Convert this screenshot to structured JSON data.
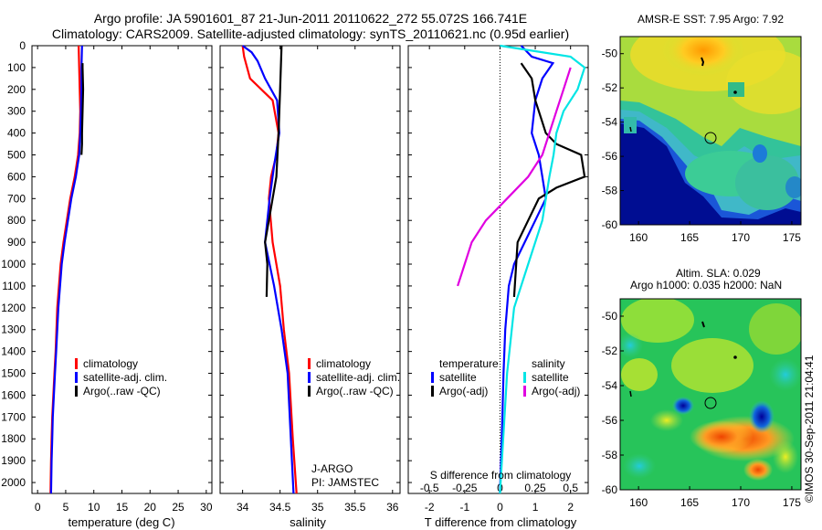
{
  "header": {
    "line1": "Argo profile: JA 5901601_87 21-Jun-2011 20110622_272 55.072S 166.741E",
    "line2": "Climatology: CARS2009. Satellite-adjusted climatology: synTS_20110621.nc (0.95d earlier)"
  },
  "colors": {
    "climatology": "#ff0000",
    "satellite": "#0000ff",
    "argo": "#000000",
    "s_satellite": "#00e5e5",
    "s_argo": "#e000e0"
  },
  "footer": {
    "pi_line1": "J-ARGO",
    "pi_line2": "PI: JAMSTEC",
    "credit": "©IMOS 30-Sep-2011 21:04:41"
  },
  "chart_data": [
    {
      "type": "line",
      "xlabel": "temperature (deg C)",
      "ylabel": "",
      "xlim": [
        -1,
        31
      ],
      "ylim": [
        2050,
        0
      ],
      "xticks": [
        0,
        5,
        10,
        15,
        20,
        25,
        30
      ],
      "yticks": [
        0,
        100,
        200,
        300,
        400,
        500,
        600,
        700,
        800,
        900,
        1000,
        1100,
        1200,
        1300,
        1400,
        1500,
        1600,
        1700,
        1800,
        1900,
        2000
      ],
      "legend": [
        "climatology",
        "satellite-adj. clim.",
        "Argo(..raw -QC)"
      ],
      "series": [
        {
          "name": "climatology",
          "x": [
            7.3,
            7.4,
            7.5,
            7.6,
            7.5,
            7.2,
            6.6,
            5.8,
            5.2,
            4.6,
            4.1,
            3.5,
            3.2,
            3.0,
            2.8,
            2.6,
            2.5,
            2.4,
            2.3
          ],
          "y": [
            0,
            100,
            200,
            300,
            400,
            500,
            600,
            700,
            800,
            900,
            1000,
            1200,
            1400,
            1500,
            1600,
            1700,
            1800,
            1900,
            2050
          ]
        },
        {
          "name": "satellite-adj. clim.",
          "x": [
            7.9,
            7.8,
            7.8,
            7.7,
            7.6,
            7.4,
            6.8,
            6.0,
            5.4,
            4.8,
            4.3,
            3.7,
            3.3,
            3.1,
            2.9,
            2.7,
            2.6,
            2.5,
            2.4
          ],
          "y": [
            0,
            100,
            200,
            300,
            400,
            500,
            600,
            700,
            800,
            900,
            1000,
            1200,
            1400,
            1500,
            1600,
            1700,
            1800,
            1900,
            2050
          ]
        },
        {
          "name": "Argo(..raw -QC)",
          "x": [
            8.0,
            8.0,
            8.1,
            8.0,
            7.9,
            7.9,
            7.8
          ],
          "y": [
            80,
            100,
            200,
            300,
            400,
            450,
            500
          ]
        }
      ]
    },
    {
      "type": "line",
      "xlabel": "salinity",
      "xlim": [
        33.7,
        36.1
      ],
      "ylim": [
        2050,
        0
      ],
      "xticks": [
        34,
        34.5,
        35,
        35.5,
        36
      ],
      "legend": [
        "climatology",
        "satellite-adj. clim.",
        "Argo(..raw -QC)"
      ],
      "series": [
        {
          "name": "climatology",
          "x": [
            34.0,
            34.02,
            34.1,
            34.4,
            34.48,
            34.45,
            34.38,
            34.35,
            34.4,
            34.5,
            34.55,
            34.62,
            34.67,
            34.72
          ],
          "y": [
            0,
            50,
            150,
            250,
            400,
            500,
            600,
            700,
            900,
            1100,
            1300,
            1500,
            1800,
            2050
          ]
        },
        {
          "name": "satellite-adj. clim.",
          "x": [
            34.0,
            34.12,
            34.2,
            34.3,
            34.46,
            34.49,
            34.42,
            34.36,
            34.3,
            34.42,
            34.52,
            34.6,
            34.68
          ],
          "y": [
            0,
            30,
            70,
            150,
            250,
            400,
            550,
            700,
            900,
            1100,
            1300,
            1500,
            2050
          ]
        },
        {
          "name": "Argo(..raw -QC)",
          "x": [
            34.52,
            34.5,
            34.48,
            34.45,
            34.35,
            34.3,
            34.33,
            34.32
          ],
          "y": [
            0,
            200,
            400,
            600,
            800,
            900,
            1000,
            1150
          ]
        }
      ]
    },
    {
      "type": "line",
      "xlabel": "T difference from climatology",
      "xlabel_top": "S difference from climatology",
      "xlim_T": [
        -2.6,
        2.5
      ],
      "xticks_T": [
        -2,
        -1,
        0,
        1,
        2
      ],
      "xticks_S": [
        -0.5,
        -0.25,
        0,
        0.25,
        0.5
      ],
      "ylim": [
        2050,
        0
      ],
      "legend_T_title": "temperature",
      "legend_S_title": "salinity",
      "legend": [
        "satellite",
        "Argo(-adj)",
        "satellite",
        "Argo(-adj)"
      ],
      "series": [
        {
          "name": "satellite",
          "group": "temperature",
          "x": [
            0.6,
            0.9,
            1.5,
            1.2,
            1.0,
            0.9,
            1.1,
            1.2,
            1.3,
            1.0,
            0.7,
            0.4,
            0.25,
            0.15,
            0.1,
            0.05,
            0.0
          ],
          "y": [
            0,
            50,
            80,
            150,
            250,
            400,
            500,
            600,
            700,
            800,
            900,
            1000,
            1100,
            1300,
            1500,
            1800,
            2050
          ]
        },
        {
          "name": "Argo(-adj)",
          "group": "temperature",
          "x": [
            0.6,
            0.9,
            1.0,
            1.2,
            1.3,
            1.6,
            2.3,
            2.4,
            1.6,
            1.1,
            0.8,
            0.5,
            0.4
          ],
          "y": [
            80,
            150,
            250,
            350,
            400,
            450,
            500,
            600,
            650,
            700,
            800,
            900,
            1150
          ]
        },
        {
          "name": "satellite",
          "group": "salinity",
          "x": [
            0.0,
            0.5,
            0.6,
            0.55,
            0.45,
            0.4,
            0.38,
            0.35,
            0.3,
            0.2,
            0.1,
            0.05,
            0.0
          ],
          "y": [
            0,
            50,
            100,
            200,
            300,
            400,
            500,
            600,
            800,
            1000,
            1200,
            1500,
            2050
          ]
        },
        {
          "name": "Argo(-adj)",
          "group": "salinity",
          "x": [
            0.5,
            0.45,
            0.4,
            0.35,
            0.3,
            0.2,
            0.05,
            -0.1,
            -0.2,
            -0.3
          ],
          "y": [
            100,
            200,
            300,
            400,
            500,
            600,
            700,
            800,
            900,
            1100
          ]
        }
      ]
    },
    {
      "type": "heatmap",
      "title": "AMSR-E SST: 7.95 Argo: 7.92",
      "xticks": [
        160,
        165,
        170,
        175
      ],
      "yticks": [
        -50,
        -52,
        -54,
        -56,
        -58,
        -60
      ]
    },
    {
      "type": "heatmap",
      "title_line1": "Altim. SLA: 0.029",
      "title_line2": "Argo h1000: 0.035 h2000: NaN",
      "xticks": [
        160,
        165,
        170,
        175
      ],
      "yticks": [
        -50,
        -52,
        -54,
        -56,
        -58,
        -60
      ]
    }
  ]
}
